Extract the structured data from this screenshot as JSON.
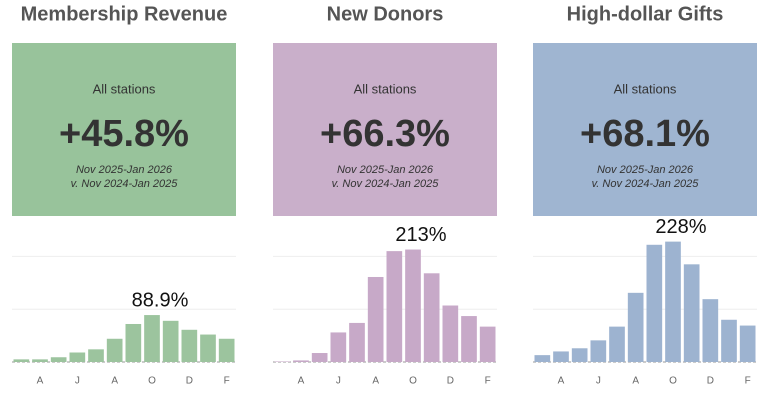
{
  "chart_data": [
    {
      "type": "bar",
      "title": "Membership Revenue",
      "kpi_label": "All stations",
      "kpi_value": "+45.8%",
      "period": [
        "Nov 2025-Jan 2026",
        "v. Nov 2024-Jan 2025"
      ],
      "card_color": "#98c39b",
      "color": "#9cc49e",
      "categories": [
        null,
        "A",
        null,
        "J",
        null,
        "A",
        null,
        "O",
        null,
        "D",
        null,
        "F"
      ],
      "values": [
        5,
        5,
        9,
        18,
        24,
        44,
        72,
        88.9,
        78,
        61,
        52,
        44
      ],
      "value_labels": [
        null,
        null,
        null,
        null,
        null,
        null,
        null,
        "88.9%",
        null,
        null,
        null,
        null
      ],
      "ylim": [
        0,
        250
      ],
      "yticks": [
        0,
        100,
        200
      ],
      "grid": true
    },
    {
      "type": "bar",
      "title": "New Donors",
      "kpi_label": "All stations",
      "kpi_value": "+66.3%",
      "period": [
        "Nov 2025-Jan 2026",
        "v. Nov 2024-Jan 2025"
      ],
      "card_color": "#c9afca",
      "color": "#c7a9c8",
      "categories": [
        null,
        "A",
        null,
        "J",
        null,
        "A",
        null,
        "O",
        null,
        "D",
        null,
        "F"
      ],
      "values": [
        1,
        3,
        17,
        56,
        74,
        161,
        210,
        213,
        168,
        107,
        87,
        67
      ],
      "value_labels": [
        null,
        null,
        null,
        null,
        null,
        null,
        null,
        "213%",
        null,
        null,
        null,
        null
      ],
      "ylim": [
        0,
        250
      ],
      "yticks": [
        0,
        100,
        200
      ],
      "grid": true
    },
    {
      "type": "bar",
      "title": "High-dollar Gifts",
      "kpi_label": "All stations",
      "kpi_value": "+68.1%",
      "period": [
        "Nov 2025-Jan 2026",
        "v. Nov 2024-Jan 2025"
      ],
      "card_color": "#9fb5d1",
      "color": "#9db3d0",
      "categories": [
        null,
        "A",
        null,
        "J",
        null,
        "A",
        null,
        "O",
        null,
        "D",
        null,
        "F"
      ],
      "values": [
        13,
        20,
        26,
        41,
        67,
        131,
        222,
        228,
        185,
        119,
        80,
        69
      ],
      "value_labels": [
        null,
        null,
        null,
        null,
        null,
        null,
        null,
        "228%",
        null,
        null,
        null,
        null
      ],
      "ylim": [
        0,
        250
      ],
      "yticks": [
        0,
        100,
        200
      ],
      "grid": true
    }
  ]
}
